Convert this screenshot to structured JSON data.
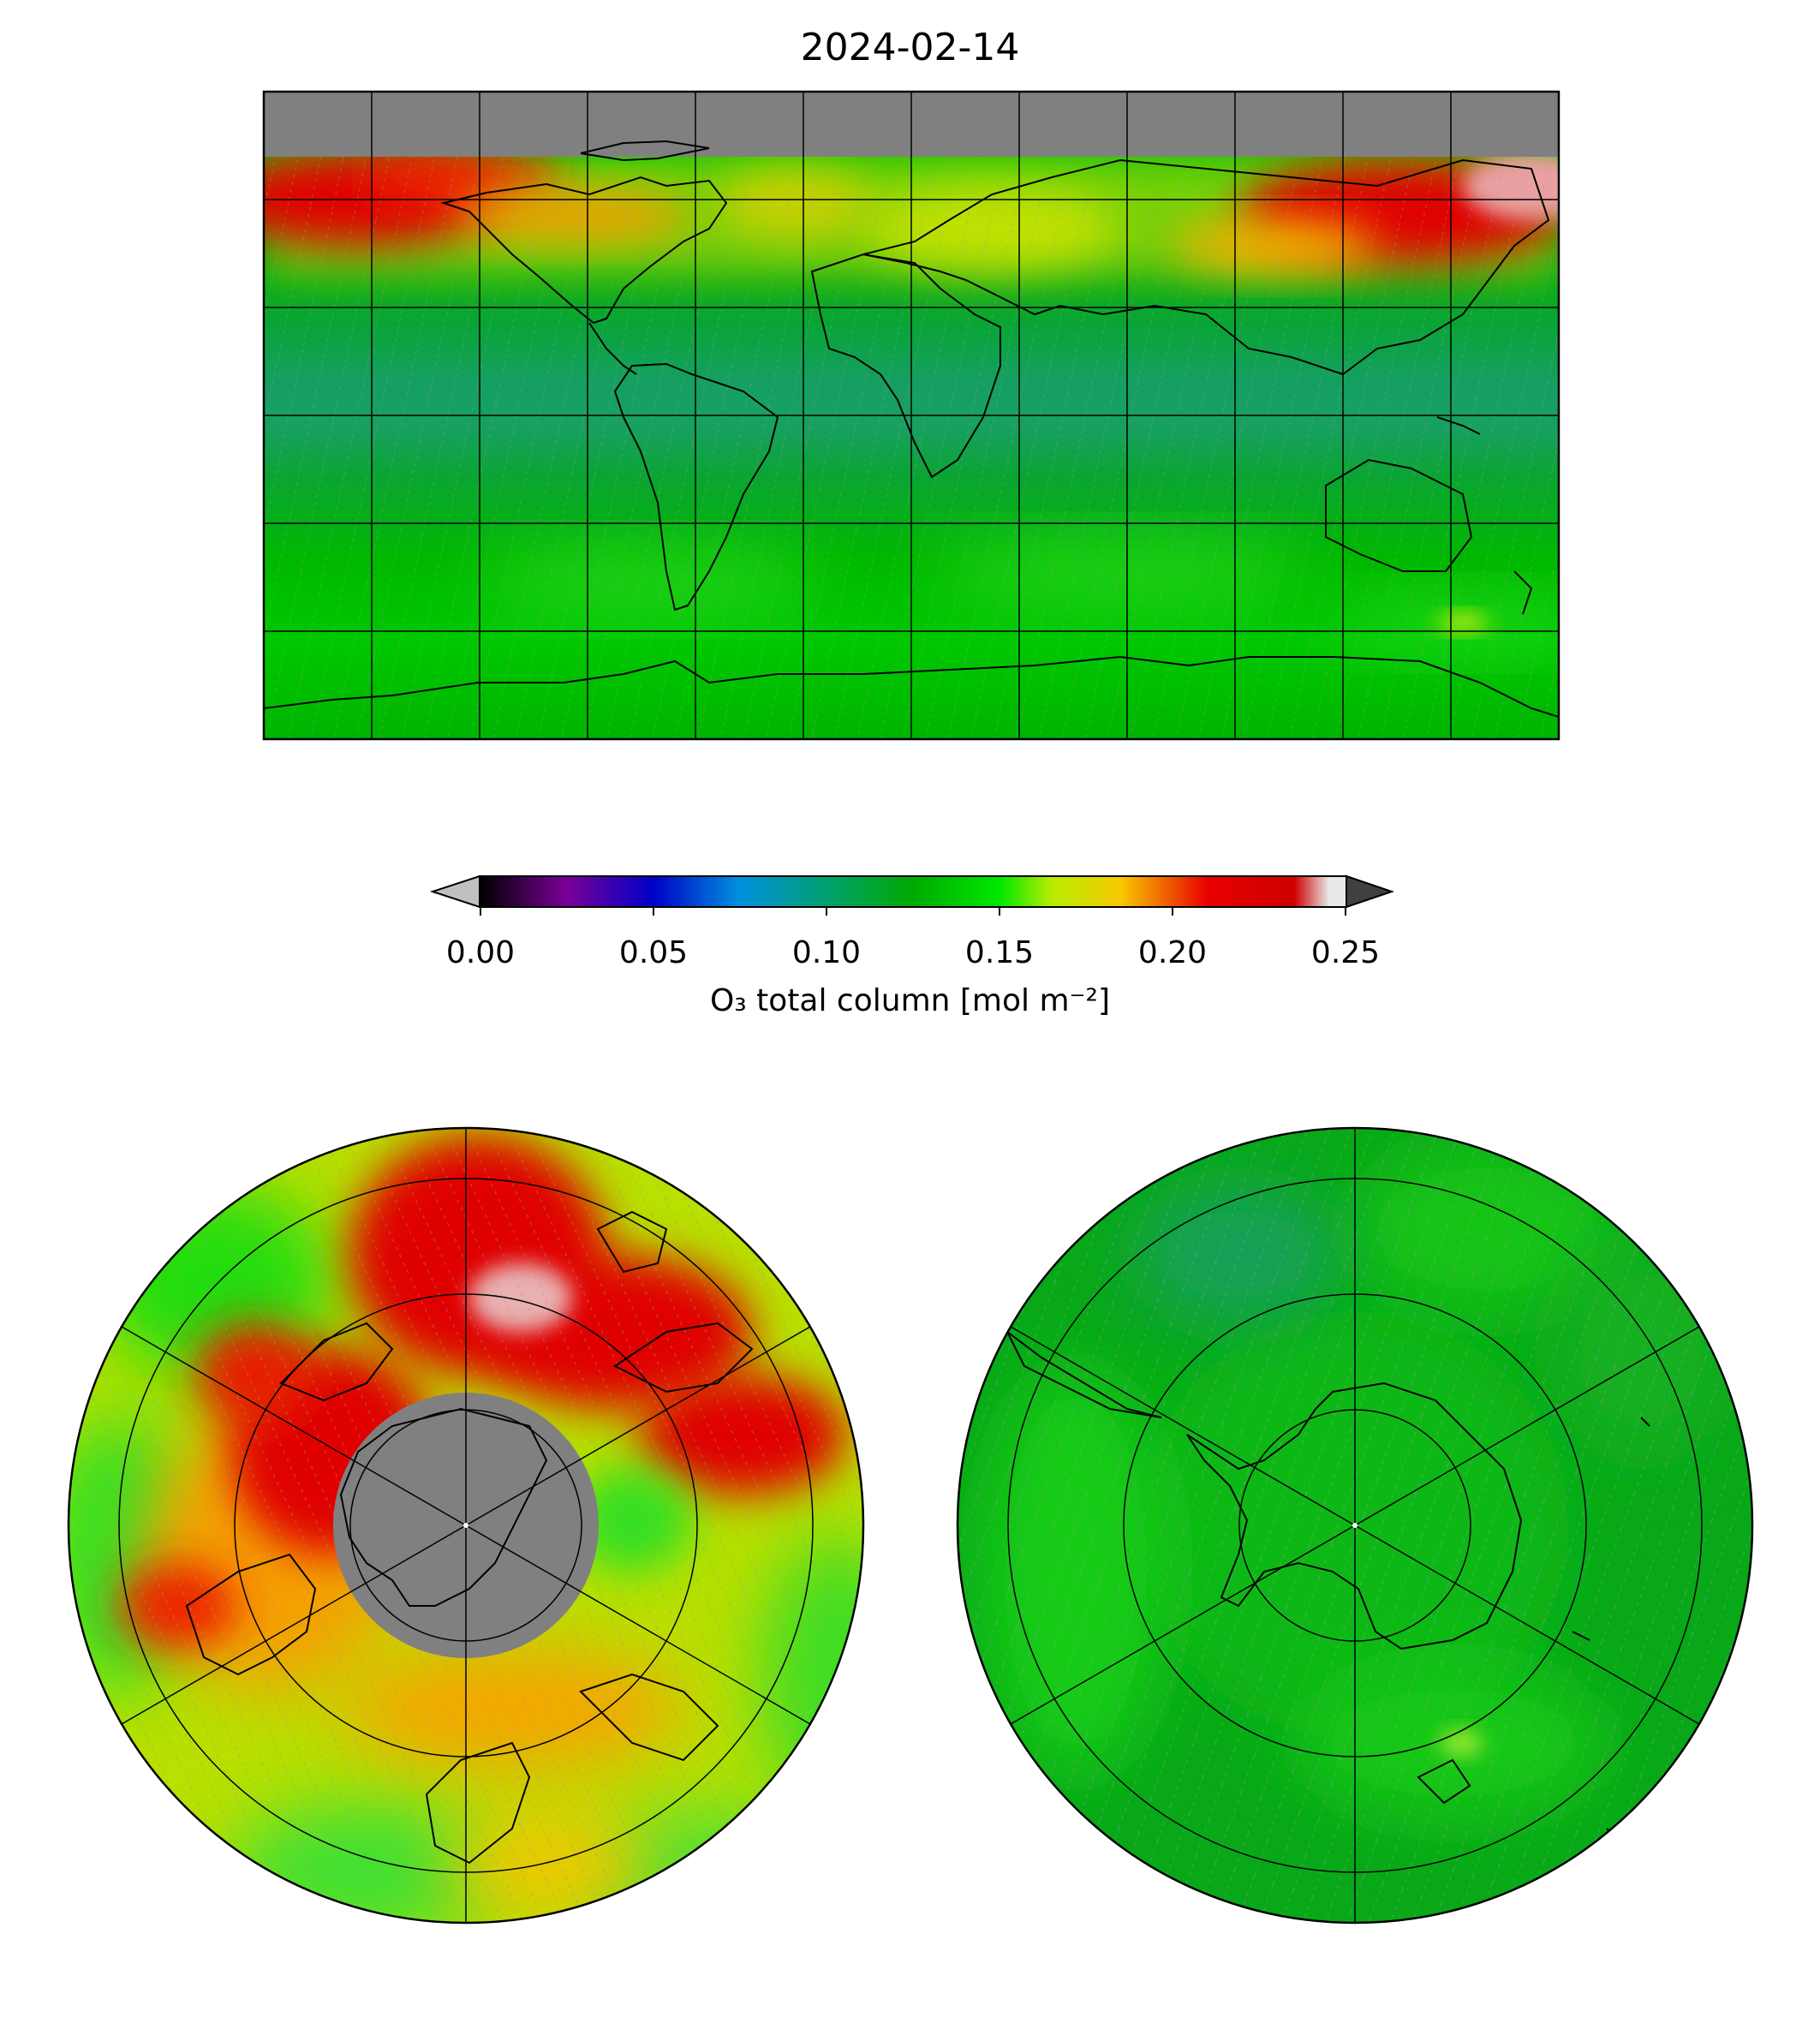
{
  "figure": {
    "title": "2024-02-14"
  },
  "colorbar": {
    "label": "O₃ total column [mol m⁻²]",
    "ticks": [
      "0.00",
      "0.05",
      "0.10",
      "0.15",
      "0.20",
      "0.25"
    ],
    "range": [
      0.0,
      0.25
    ],
    "extend": "both",
    "under_color": "#c0c0c0",
    "over_color": "#404040",
    "stops": [
      {
        "v": 0.0,
        "c": "#000000"
      },
      {
        "v": 0.025,
        "c": "#7a0096"
      },
      {
        "v": 0.05,
        "c": "#0000c8"
      },
      {
        "v": 0.075,
        "c": "#0090dd"
      },
      {
        "v": 0.1,
        "c": "#00a070"
      },
      {
        "v": 0.125,
        "c": "#00aa00"
      },
      {
        "v": 0.15,
        "c": "#00e800"
      },
      {
        "v": 0.165,
        "c": "#b8ec00"
      },
      {
        "v": 0.185,
        "c": "#f7c800"
      },
      {
        "v": 0.21,
        "c": "#e80000"
      },
      {
        "v": 0.235,
        "c": "#cf0000"
      },
      {
        "v": 0.245,
        "c": "#e8e8e8"
      },
      {
        "v": 0.25,
        "c": "#e8e8e8"
      }
    ]
  },
  "panels": {
    "global": {
      "projection": "equirectangular",
      "gridlines_lon_deg": 30,
      "gridlines_lat_deg": 30,
      "no_data_color": "#808080"
    },
    "north_polar": {
      "projection": "north-polar-stereographic",
      "no_data_color": "#808080"
    },
    "south_polar": {
      "projection": "south-polar-stereographic"
    }
  }
}
